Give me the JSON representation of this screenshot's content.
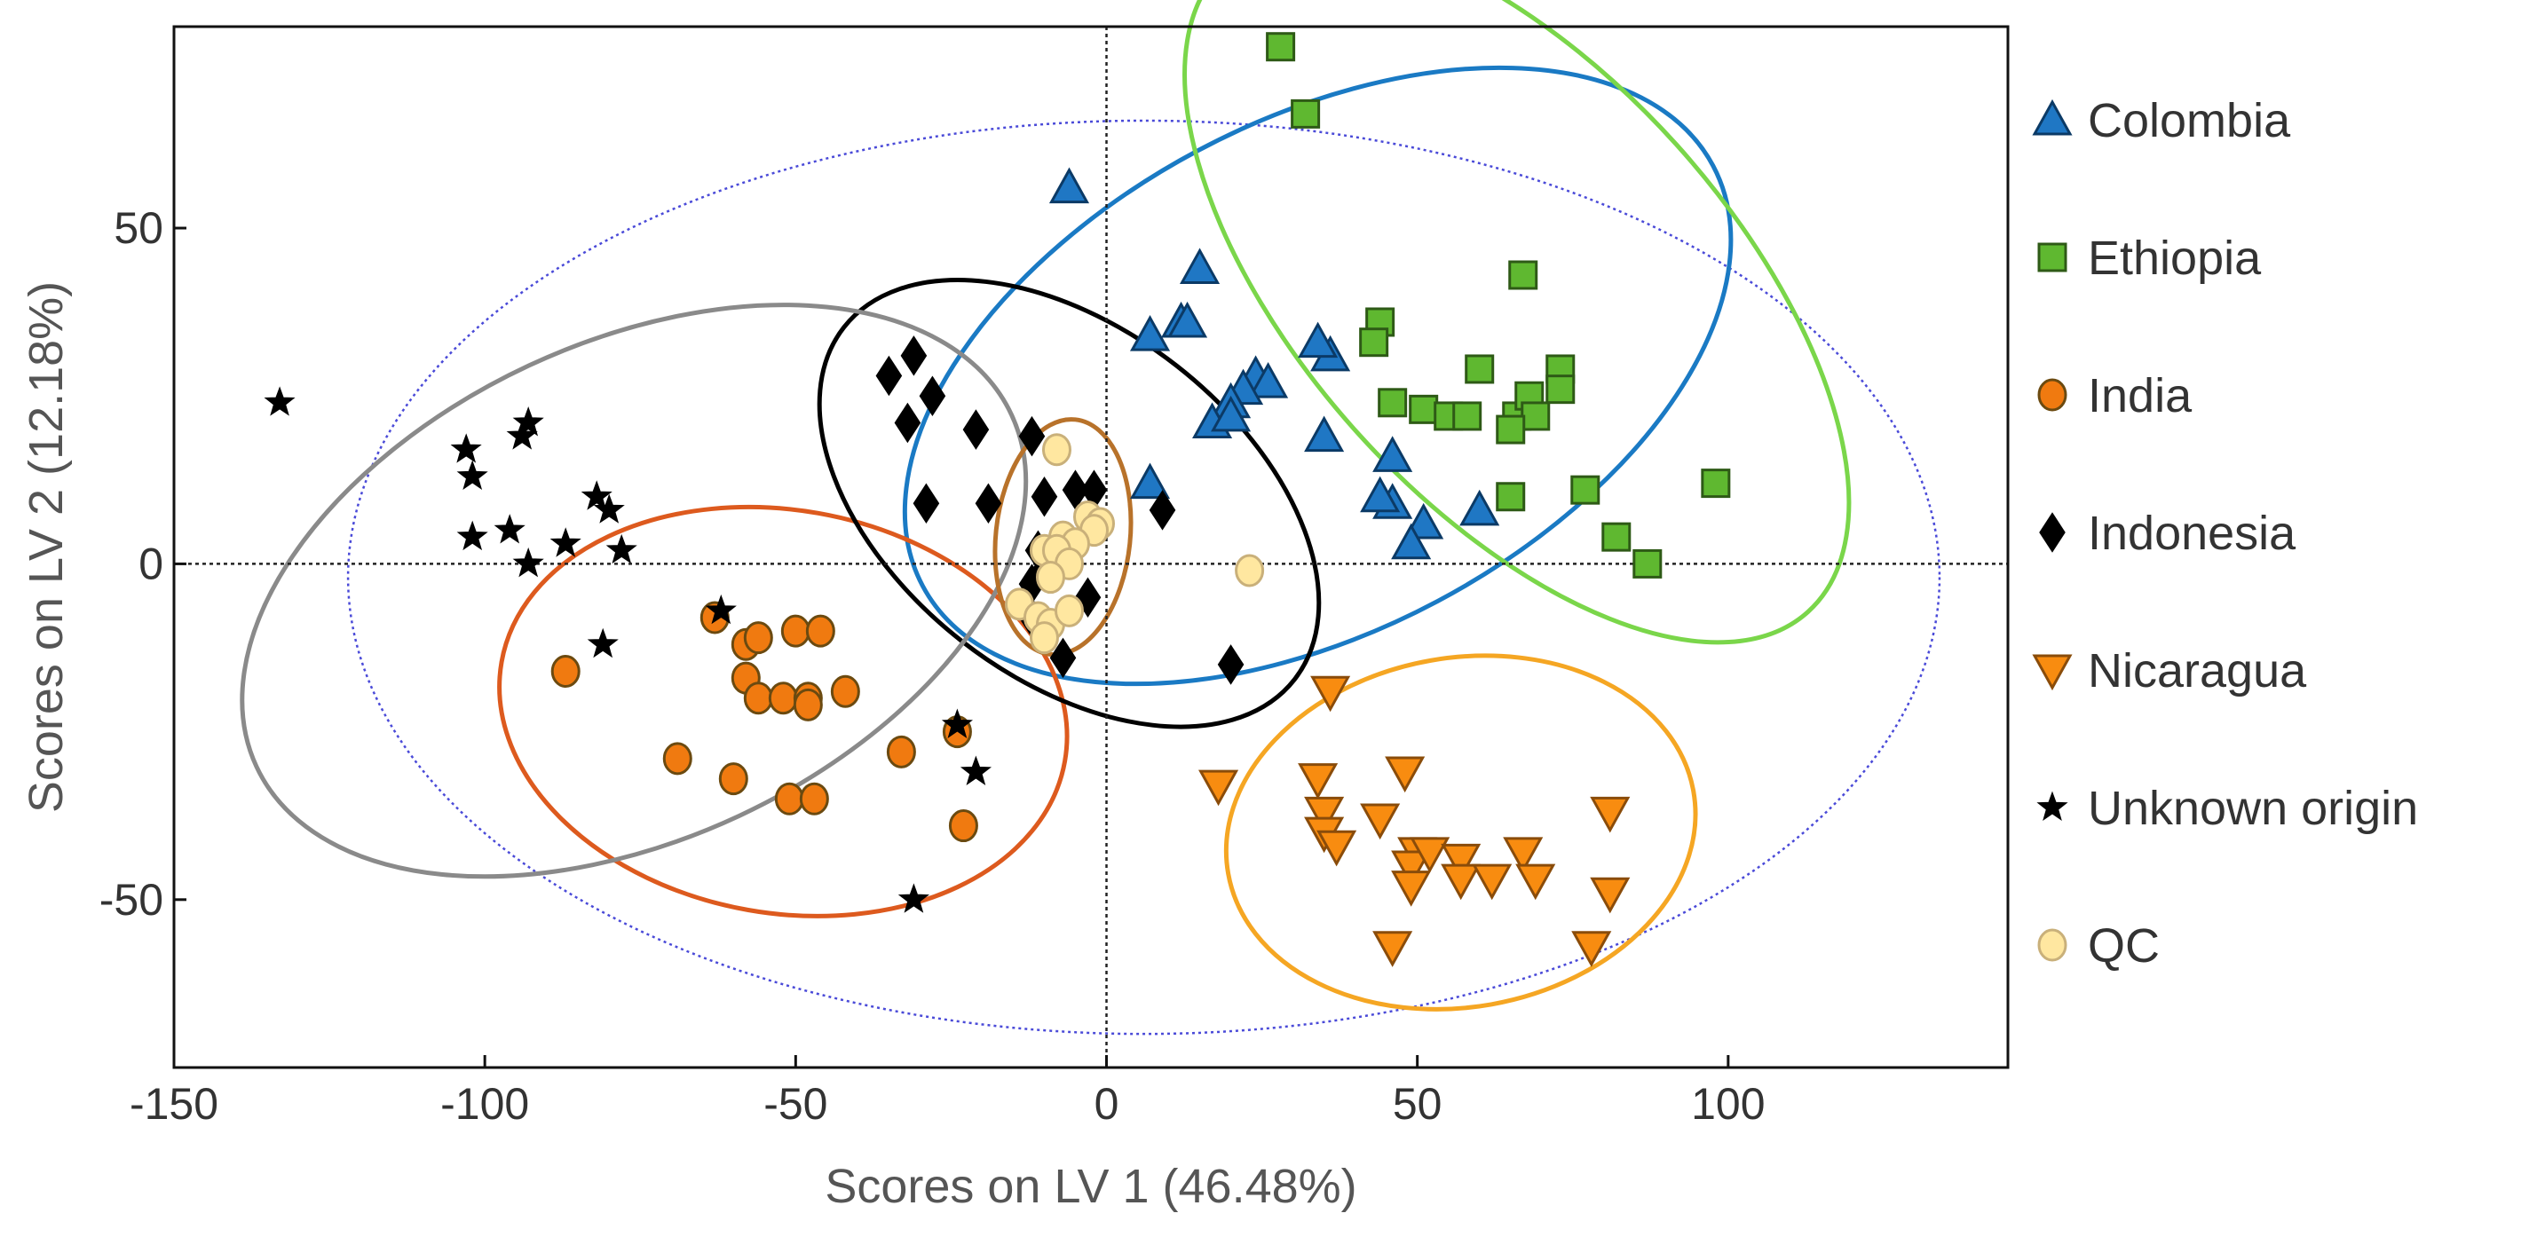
{
  "chart_data": {
    "type": "scatter",
    "title": "",
    "xlabel": "Scores on LV 1 (46.48%)",
    "ylabel": "Scores on LV 2 (12.18%)",
    "xlim": [
      -150,
      145
    ],
    "ylim": [
      -75,
      80
    ],
    "xticks": [
      -150,
      -100,
      -50,
      0,
      50,
      100
    ],
    "yticks": [
      -50,
      0,
      50
    ],
    "xtick_labels": [
      "-150",
      "-100",
      "-50",
      "0",
      "50",
      "100"
    ],
    "ytick_labels": [
      "-50",
      "0",
      "50"
    ],
    "reference_lines": {
      "x": 0,
      "y": 0,
      "style": "dotted"
    },
    "confidence_ellipse": {
      "center": [
        6,
        -2
      ],
      "radius": [
        128,
        68
      ],
      "color": "#4a4ad8",
      "style": "dotted"
    },
    "series": [
      {
        "name": "Colombia",
        "marker": "triangle-up",
        "color": "#1f77c4",
        "edge": "#0b3a66",
        "points": [
          [
            -6,
            56
          ],
          [
            15,
            44
          ],
          [
            12,
            36
          ],
          [
            13,
            36
          ],
          [
            7,
            34
          ],
          [
            24,
            28
          ],
          [
            26,
            27
          ],
          [
            22,
            26
          ],
          [
            20,
            24
          ],
          [
            36,
            31
          ],
          [
            34,
            33
          ],
          [
            17,
            21
          ],
          [
            35,
            19
          ],
          [
            20,
            22
          ],
          [
            46,
            16
          ],
          [
            46,
            9
          ],
          [
            44,
            10
          ],
          [
            51,
            6
          ],
          [
            60,
            8
          ],
          [
            49,
            3
          ],
          [
            7,
            12
          ]
        ],
        "ellipse": {
          "center": [
            34,
            28
          ],
          "radius": [
            72,
            38
          ],
          "angle": 28,
          "color": "#1a7ac4"
        }
      },
      {
        "name": "Ethiopia",
        "marker": "square",
        "color": "#5fb830",
        "edge": "#2e5a16",
        "points": [
          [
            28,
            77
          ],
          [
            32,
            67
          ],
          [
            67,
            43
          ],
          [
            44,
            36
          ],
          [
            43,
            33
          ],
          [
            60,
            29
          ],
          [
            73,
            29
          ],
          [
            66,
            22
          ],
          [
            68,
            25
          ],
          [
            73,
            26
          ],
          [
            46,
            24
          ],
          [
            51,
            23
          ],
          [
            55,
            22
          ],
          [
            58,
            22
          ],
          [
            69,
            22
          ],
          [
            65,
            20
          ],
          [
            77,
            11
          ],
          [
            65,
            10
          ],
          [
            98,
            12
          ],
          [
            82,
            4
          ],
          [
            87,
            0
          ]
        ],
        "ellipse": {
          "center": [
            66,
            41
          ],
          "radius": [
            70,
            32
          ],
          "angle": -48,
          "color": "#7ad64a"
        }
      },
      {
        "name": "India",
        "marker": "circle",
        "color": "#f07a10",
        "edge": "#6b4a10",
        "points": [
          [
            -63,
            -8
          ],
          [
            -58,
            -12
          ],
          [
            -56,
            -11
          ],
          [
            -50,
            -10
          ],
          [
            -46,
            -10
          ],
          [
            -58,
            -17
          ],
          [
            -56,
            -20
          ],
          [
            -52,
            -20
          ],
          [
            -48,
            -20
          ],
          [
            -48,
            -21
          ],
          [
            -42,
            -19
          ],
          [
            -87,
            -16
          ],
          [
            -69,
            -29
          ],
          [
            -60,
            -32
          ],
          [
            -51,
            -35
          ],
          [
            -47,
            -35
          ],
          [
            -33,
            -28
          ],
          [
            -24,
            -25
          ],
          [
            -23,
            -39
          ]
        ],
        "ellipse": {
          "center": [
            -52,
            -22
          ],
          "radius": [
            46,
            30
          ],
          "angle": -10,
          "color": "#dd5a1e"
        }
      },
      {
        "name": "Indonesia",
        "marker": "diamond",
        "color": "#000000",
        "edge": "#000000",
        "points": [
          [
            -31,
            31
          ],
          [
            -35,
            28
          ],
          [
            -28,
            25
          ],
          [
            -32,
            21
          ],
          [
            -21,
            20
          ],
          [
            -12,
            19
          ],
          [
            -5,
            11
          ],
          [
            -10,
            10
          ],
          [
            -19,
            9
          ],
          [
            -29,
            9
          ],
          [
            -2,
            11
          ],
          [
            9,
            8
          ],
          [
            -11,
            2
          ],
          [
            -10,
            -1
          ],
          [
            -12,
            -3
          ],
          [
            -3,
            -5
          ],
          [
            -12,
            -8
          ],
          [
            -7,
            -14
          ],
          [
            20,
            -15
          ]
        ],
        "ellipse": {
          "center": [
            -6,
            9
          ],
          "radius": [
            46,
            26
          ],
          "angle": -38,
          "color": "#000000"
        }
      },
      {
        "name": "Nicaragua",
        "marker": "triangle-down",
        "color": "#f88c10",
        "edge": "#8a4c0a",
        "points": [
          [
            36,
            -19
          ],
          [
            18,
            -33
          ],
          [
            34,
            -32
          ],
          [
            44,
            -38
          ],
          [
            48,
            -31
          ],
          [
            35,
            -37
          ],
          [
            35,
            -40
          ],
          [
            37,
            -42
          ],
          [
            50,
            -43
          ],
          [
            49,
            -45
          ],
          [
            52,
            -43
          ],
          [
            57,
            -44
          ],
          [
            57,
            -47
          ],
          [
            62,
            -47
          ],
          [
            67,
            -43
          ],
          [
            69,
            -47
          ],
          [
            81,
            -37
          ],
          [
            81,
            -49
          ],
          [
            49,
            -48
          ],
          [
            46,
            -57
          ],
          [
            78,
            -57
          ]
        ],
        "ellipse": {
          "center": [
            57,
            -40
          ],
          "radius": [
            38,
            26
          ],
          "angle": 10,
          "color": "#f5a623"
        }
      },
      {
        "name": "Unknown origin",
        "marker": "star",
        "color": "#000000",
        "edge": "#000000",
        "points": [
          [
            -133,
            24
          ],
          [
            -103,
            17
          ],
          [
            -102,
            13
          ],
          [
            -93,
            21
          ],
          [
            -94,
            19
          ],
          [
            -82,
            10
          ],
          [
            -80,
            8
          ],
          [
            -78,
            2
          ],
          [
            -96,
            5
          ],
          [
            -102,
            4
          ],
          [
            -87,
            3
          ],
          [
            -93,
            0
          ],
          [
            -81,
            -12
          ],
          [
            -62,
            -7
          ],
          [
            -24,
            -24
          ],
          [
            -21,
            -31
          ],
          [
            -31,
            -50
          ]
        ],
        "ellipse": {
          "center": [
            -76,
            -4
          ],
          "radius": [
            67,
            37
          ],
          "angle": 25,
          "color": "#8a8a8a"
        }
      },
      {
        "name": "QC",
        "marker": "circle",
        "color": "#ffe7a0",
        "edge": "#c9b07a",
        "points": [
          [
            -8,
            17
          ],
          [
            -3,
            7
          ],
          [
            -1,
            6
          ],
          [
            -2,
            5
          ],
          [
            -7,
            4
          ],
          [
            -5,
            3
          ],
          [
            -10,
            2
          ],
          [
            -8,
            2
          ],
          [
            -6,
            0
          ],
          [
            -9,
            -2
          ],
          [
            -14,
            -6
          ],
          [
            -11,
            -8
          ],
          [
            -9,
            -9
          ],
          [
            -6,
            -7
          ],
          [
            -10,
            -11
          ],
          [
            23,
            -1
          ]
        ],
        "ellipse": {
          "center": [
            -7,
            4
          ],
          "radius": [
            19,
            10
          ],
          "angle": 84,
          "color": "#b8722a"
        }
      }
    ]
  }
}
